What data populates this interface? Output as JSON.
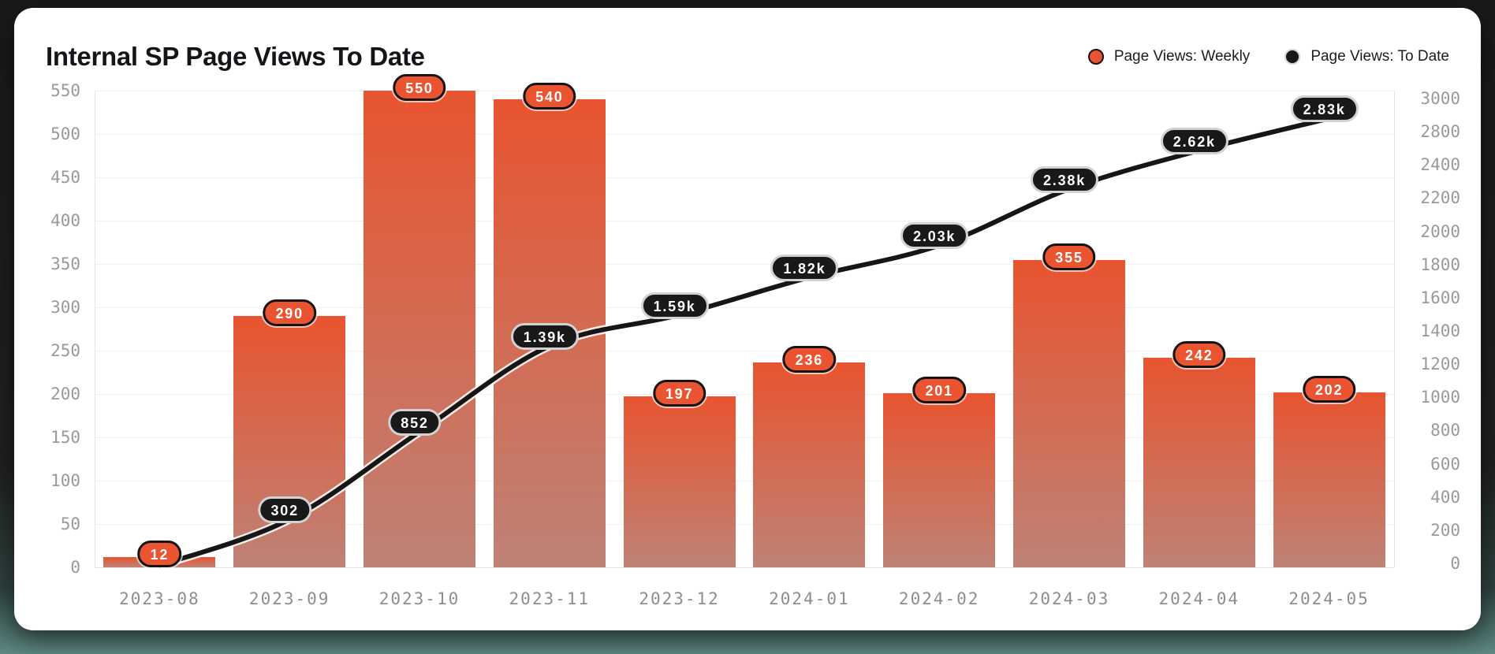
{
  "title": "Internal SP Page Views To Date",
  "legend": {
    "weekly": "Page Views: Weekly",
    "todate": "Page Views: To Date"
  },
  "colors": {
    "accent_orange": "#E8542F",
    "bar_gradient_bottom": "#BE8276",
    "line_black": "#161616",
    "badge_orange_bg": "#EA5430",
    "badge_black_bg": "#191919",
    "tick_gray": "#98999c"
  },
  "chart_data": {
    "type": "combo",
    "title": "Internal SP Page Views To Date",
    "categories": [
      "2023-08",
      "2023-09",
      "2023-10",
      "2023-11",
      "2023-12",
      "2024-01",
      "2024-02",
      "2024-03",
      "2024-04",
      "2024-05"
    ],
    "series": [
      {
        "name": "Page Views: Weekly",
        "type": "bar",
        "axis": "left",
        "values": [
          12,
          290,
          550,
          540,
          197,
          236,
          201,
          355,
          242,
          202
        ],
        "data_labels": [
          "12",
          "290",
          "550",
          "540",
          "197",
          "236",
          "201",
          "355",
          "242",
          "202"
        ],
        "color_top": "#E8542F",
        "color_bottom": "#BE8276"
      },
      {
        "name": "Page Views: To Date",
        "type": "line",
        "axis": "right",
        "values": [
          12,
          302,
          852,
          1392,
          1589,
          1825,
          2026,
          2381,
          2623,
          2825
        ],
        "data_labels": [
          "",
          "302",
          "852",
          "1.39k",
          "1.59k",
          "1.82k",
          "2.03k",
          "2.38k",
          "2.62k",
          "2.83k"
        ],
        "color": "#161616",
        "smooth": true
      }
    ],
    "left_axis": {
      "range": [
        0,
        550
      ],
      "tick_interval": 50,
      "ticks_top_to_bottom": [
        "550",
        "500",
        "450",
        "400",
        "350",
        "300",
        "250",
        "200",
        "150",
        "100",
        "50",
        "0"
      ]
    },
    "right_axis": {
      "range": [
        0,
        3000
      ],
      "ticks_top_to_bottom": [
        "3000",
        "2800",
        "2400",
        "2200",
        "2000",
        "1800",
        "1600",
        "1400",
        "1200",
        "1000",
        "800",
        "600",
        "400",
        "200",
        "0"
      ]
    },
    "grid": "horizontal",
    "legend_position": "top-right"
  }
}
